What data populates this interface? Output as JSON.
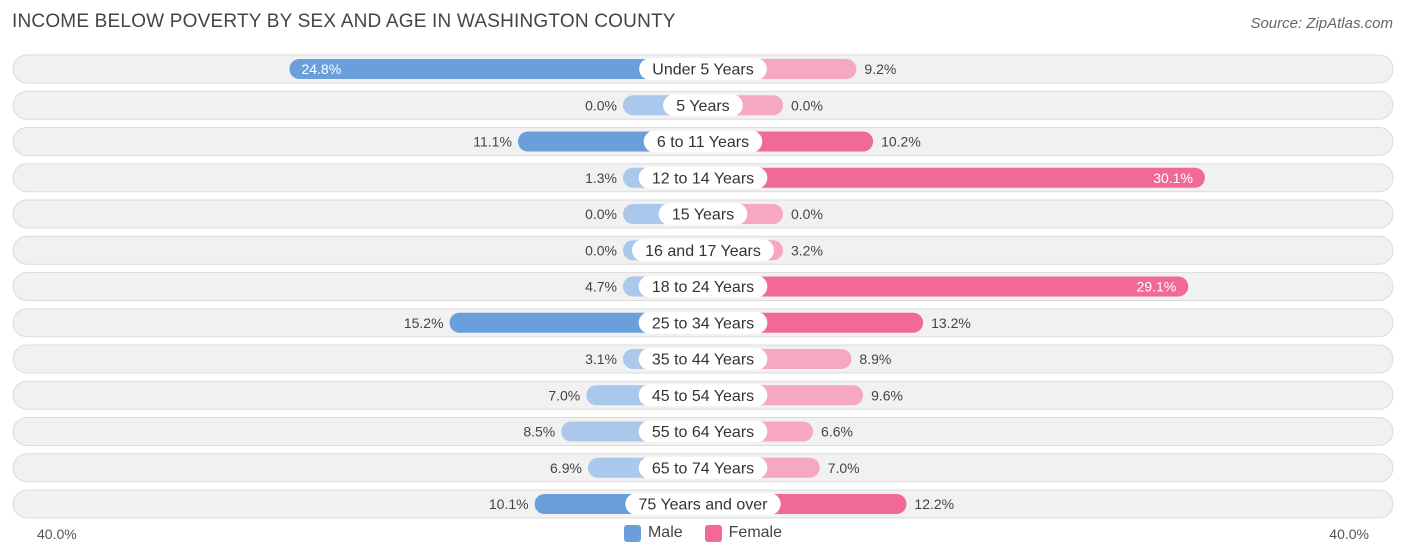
{
  "header": {
    "title": "INCOME BELOW POVERTY BY SEX AND AGE IN WASHINGTON COUNTY",
    "source": "Source: ZipAtlas.com"
  },
  "colors": {
    "male": "#6a9fdc",
    "male_light": "#a9c8ec",
    "female": "#f06a95",
    "female_light": "#f6a8c2"
  },
  "legend": {
    "male": "Male",
    "female": "Female"
  },
  "axis": {
    "left_label": "40.0%",
    "right_label": "40.0%"
  },
  "chart_data": {
    "type": "bar",
    "orientation": "horizontal-diverging",
    "title": "INCOME BELOW POVERTY BY SEX AND AGE IN WASHINGTON COUNTY",
    "xlim": [
      0,
      40
    ],
    "categories": [
      "Under 5 Years",
      "5 Years",
      "6 to 11 Years",
      "12 to 14 Years",
      "15 Years",
      "16 and 17 Years",
      "18 to 24 Years",
      "25 to 34 Years",
      "35 to 44 Years",
      "45 to 54 Years",
      "55 to 64 Years",
      "65 to 74 Years",
      "75 Years and over"
    ],
    "series": [
      {
        "name": "Male",
        "values": [
          24.8,
          0.0,
          11.1,
          1.3,
          0.0,
          0.0,
          4.7,
          15.2,
          3.1,
          7.0,
          8.5,
          6.9,
          10.1
        ],
        "labels": [
          "24.8%",
          "0.0%",
          "11.1%",
          "1.3%",
          "0.0%",
          "0.0%",
          "4.7%",
          "15.2%",
          "3.1%",
          "7.0%",
          "8.5%",
          "6.9%",
          "10.1%"
        ]
      },
      {
        "name": "Female",
        "values": [
          9.2,
          0.0,
          10.2,
          30.1,
          0.0,
          3.2,
          29.1,
          13.2,
          8.9,
          9.6,
          6.6,
          7.0,
          12.2
        ],
        "labels": [
          "9.2%",
          "0.0%",
          "10.2%",
          "30.1%",
          "0.0%",
          "3.2%",
          "29.1%",
          "13.2%",
          "8.9%",
          "9.6%",
          "6.6%",
          "7.0%",
          "12.2%"
        ]
      }
    ]
  }
}
